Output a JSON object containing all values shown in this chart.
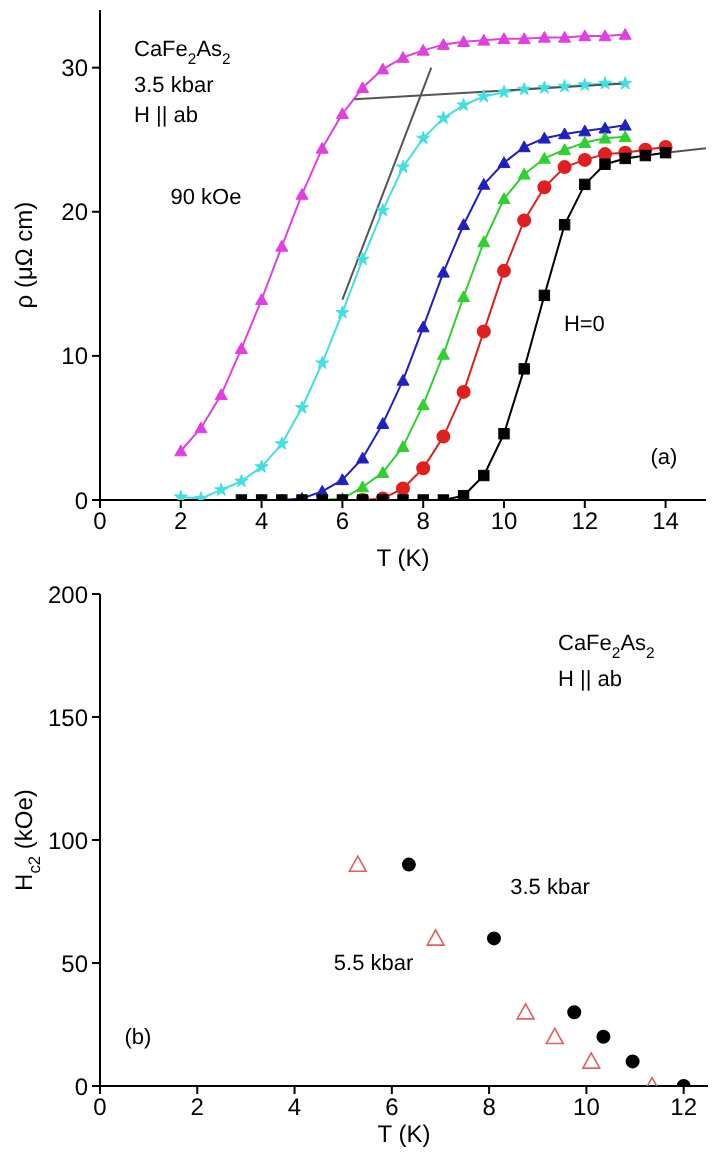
{
  "chart_data": [
    {
      "type": "line",
      "xlabel": "T (K)",
      "ylabel": "ρ (μΩ cm)",
      "xlim": [
        0,
        15
      ],
      "xticks": [
        0,
        2,
        4,
        6,
        8,
        10,
        12,
        14
      ],
      "ylim": [
        0,
        34
      ],
      "yticks": [
        0,
        10,
        20,
        30
      ],
      "annotations": [
        "CaFe$_{2}$As$_{2}$",
        "3.5 kbar",
        "H || ab",
        "(a)"
      ],
      "series": [
        {
          "name": "90 kOe",
          "color": "#e040e0",
          "marker": "triangle",
          "x": [
            2,
            2.5,
            3,
            3.5,
            4,
            4.5,
            5,
            5.5,
            6,
            6.5,
            7,
            7.5,
            8,
            8.5,
            9,
            9.5,
            10,
            10.5,
            11,
            11.5,
            12,
            12.5,
            13
          ],
          "values": [
            3.4,
            5.0,
            7.3,
            10.5,
            13.9,
            17.6,
            21.2,
            24.4,
            26.8,
            28.6,
            29.9,
            30.7,
            31.2,
            31.6,
            31.8,
            31.9,
            32.0,
            32.0,
            32.1,
            32.1,
            32.2,
            32.2,
            32.3
          ]
        },
        {
          "color": "#40e0e0",
          "marker": "star",
          "x": [
            2,
            2.5,
            3,
            3.5,
            4,
            4.5,
            5,
            5.5,
            6,
            6.5,
            7,
            7.5,
            8,
            8.5,
            9,
            9.5,
            10,
            10.5,
            11,
            11.5,
            12,
            12.5,
            13
          ],
          "values": [
            0.2,
            0.1,
            0.7,
            1.3,
            2.3,
            3.9,
            6.4,
            9.5,
            13.0,
            16.7,
            20.1,
            23.1,
            25.1,
            26.5,
            27.4,
            28.0,
            28.3,
            28.5,
            28.6,
            28.7,
            28.8,
            28.9,
            28.9
          ]
        },
        {
          "color": "#2020c0",
          "marker": "triangle",
          "x": [
            4,
            4.5,
            5,
            5.5,
            6,
            6.5,
            7,
            7.5,
            8,
            8.5,
            9,
            9.5,
            10,
            10.5,
            11,
            11.5,
            12,
            12.5,
            13
          ],
          "values": [
            0,
            0,
            0.1,
            0.6,
            1.4,
            2.9,
            5.3,
            8.3,
            12.0,
            15.8,
            19.1,
            21.9,
            23.4,
            24.5,
            25.1,
            25.4,
            25.6,
            25.8,
            26.0
          ]
        },
        {
          "color": "#30d030",
          "marker": "triangle",
          "x": [
            5,
            5.5,
            6,
            6.5,
            7,
            7.5,
            8,
            8.5,
            9,
            9.5,
            10,
            10.5,
            11,
            11.5,
            12,
            12.5,
            13
          ],
          "values": [
            0,
            0,
            0.1,
            0.9,
            1.9,
            3.7,
            6.6,
            10.1,
            14.1,
            17.9,
            20.9,
            22.6,
            23.7,
            24.3,
            24.8,
            25.1,
            25.2
          ]
        },
        {
          "color": "#e02020",
          "marker": "circle",
          "x": [
            6.5,
            7,
            7.5,
            8,
            8.5,
            9,
            9.5,
            10,
            10.5,
            11,
            11.5,
            12,
            12.5,
            13,
            13.5,
            14
          ],
          "values": [
            0,
            0.1,
            0.8,
            2.2,
            4.4,
            7.5,
            11.7,
            15.9,
            19.4,
            21.7,
            23.1,
            23.6,
            24.0,
            24.1,
            24.3,
            24.5
          ]
        },
        {
          "name": "H=0",
          "color": "#000000",
          "marker": "square",
          "x": [
            3.5,
            4,
            4.5,
            5,
            5.5,
            6,
            6.5,
            7,
            7.5,
            8,
            8.5,
            9,
            9.5,
            10,
            10.5,
            11,
            11.5,
            12,
            12.5,
            13,
            13.5,
            14
          ],
          "values": [
            0,
            0,
            0,
            0,
            0,
            0,
            0,
            0,
            0,
            0,
            0,
            0.3,
            1.7,
            4.6,
            9.1,
            14.2,
            19.1,
            21.9,
            23.3,
            23.7,
            23.9,
            24.1
          ]
        },
        {
          "color": "#555555",
          "marker": "none",
          "x": [
            6.0,
            8.2
          ],
          "values": [
            13.9,
            30.0
          ]
        },
        {
          "color": "#555555",
          "marker": "none",
          "x": [
            6.3,
            13
          ],
          "values": [
            27.8,
            28.9
          ]
        },
        {
          "color": "#555555",
          "marker": "none",
          "x": [
            14,
            15
          ],
          "values": [
            24.1,
            24.4
          ]
        }
      ]
    },
    {
      "type": "scatter",
      "xlabel": "T (K)",
      "ylabel": "H$_{c2}$ (kOe)",
      "xlim": [
        0,
        12.5
      ],
      "xticks": [
        0,
        2,
        4,
        6,
        8,
        10,
        12
      ],
      "ylim": [
        0,
        200
      ],
      "yticks": [
        0,
        50,
        100,
        150,
        200
      ],
      "annotations": [
        "CaFe$_{2}$As$_{2}$",
        "H || ab",
        "(b)"
      ],
      "series": [
        {
          "name": "3.5 kbar",
          "color": "#000000",
          "marker": "circle",
          "x": [
            6.35,
            8.1,
            9.75,
            10.35,
            10.95,
            12
          ],
          "values": [
            90,
            60,
            30,
            20,
            10,
            0
          ]
        },
        {
          "name": "5.5 kbar",
          "color": "#e06060",
          "marker": "triangle",
          "x": [
            5.3,
            6.9,
            8.75,
            9.35,
            10.1,
            11.35
          ],
          "values": [
            90,
            60,
            30,
            20,
            10,
            0
          ]
        }
      ]
    }
  ]
}
